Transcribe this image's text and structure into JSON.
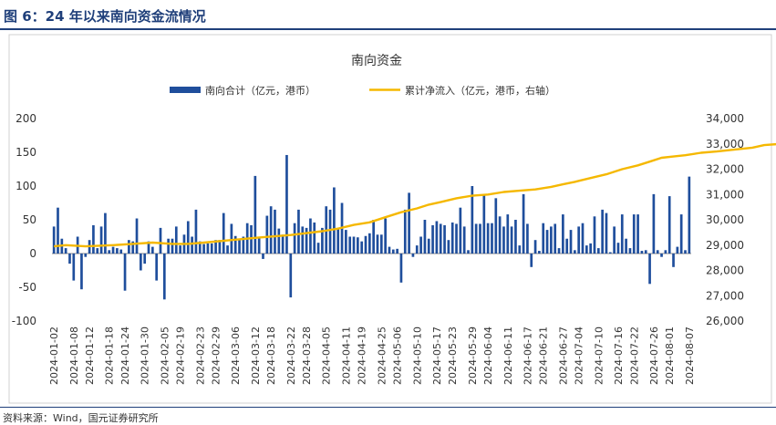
{
  "figure_title": "图 6：24 年以来南向资金流情况",
  "source_note": "资料来源：Wind，国元证券研究所",
  "chart_data": {
    "type": "bar+line",
    "title": "南向资金",
    "legend_position": "top",
    "grid": false,
    "left_axis": {
      "ylim": [
        -100,
        200
      ],
      "ticks": [
        "200",
        "150",
        "100",
        "50",
        "0",
        "-50",
        "-100"
      ]
    },
    "right_axis": {
      "ylim": [
        26000,
        34000
      ],
      "ticks": [
        "34,000",
        "33,000",
        "32,000",
        "31,000",
        "30,000",
        "29,000",
        "28,000",
        "27,000",
        "26,000"
      ]
    },
    "x_tick_labels": [
      "2024-01-02",
      "2024-01-08",
      "2024-01-12",
      "2024-01-18",
      "2024-01-24",
      "2024-01-30",
      "2024-02-05",
      "2024-02-19",
      "2024-02-23",
      "2024-02-29",
      "2024-03-06",
      "2024-03-12",
      "2024-03-18",
      "2024-03-22",
      "2024-03-28",
      "2024-04-05",
      "2024-04-11",
      "2024-04-19",
      "2024-04-25",
      "2024-05-06",
      "2024-05-10",
      "2024-05-17",
      "2024-05-23",
      "2024-05-29",
      "2024-06-04",
      "2024-06-11",
      "2024-06-17",
      "2024-06-21",
      "2024-06-27",
      "2024-07-04",
      "2024-07-10",
      "2024-07-16",
      "2024-07-22",
      "2024-07-26",
      "2024-08-01",
      "2024-08-07"
    ],
    "series": [
      {
        "name": "南向合计（亿元，港币）",
        "type": "bar",
        "axis": "left",
        "color": "#1f4e9c",
        "values": [
          40,
          68,
          22,
          8,
          -15,
          -40,
          25,
          -53,
          -5,
          20,
          42,
          8,
          40,
          60,
          5,
          10,
          8,
          6,
          -55,
          20,
          18,
          52,
          -25,
          -15,
          18,
          10,
          -40,
          38,
          -68,
          22,
          22,
          40,
          12,
          28,
          48,
          25,
          65,
          18,
          14,
          15,
          15,
          20,
          20,
          60,
          12,
          44,
          26,
          20,
          25,
          45,
          42,
          115,
          25,
          -8,
          56,
          70,
          65,
          37,
          28,
          146,
          -65,
          45,
          65,
          40,
          38,
          52,
          46,
          16,
          38,
          70,
          65,
          98,
          38,
          75,
          35,
          25,
          25,
          24,
          18,
          26,
          30,
          50,
          28,
          28,
          52,
          10,
          6,
          7,
          -43,
          65,
          90,
          -5,
          12,
          25,
          50,
          22,
          42,
          48,
          44,
          42,
          20,
          46,
          44,
          68,
          40,
          5,
          100,
          44,
          44,
          88,
          45,
          45,
          82,
          55,
          40,
          58,
          40,
          50,
          12,
          88,
          44,
          -20,
          20,
          4,
          45,
          35,
          40,
          44,
          8,
          58,
          22,
          35,
          5,
          40,
          45,
          12,
          15,
          55,
          8,
          65,
          60,
          2,
          40,
          16,
          58,
          22,
          8,
          58,
          58,
          4,
          5,
          -45,
          88,
          5,
          -5,
          5,
          85,
          -20,
          10,
          58,
          5,
          114
        ]
      },
      {
        "name": "累计净流入（亿元，港币，右轴）",
        "type": "line",
        "axis": "right",
        "color": "#f5b800",
        "anchors": [
          [
            0,
            28950
          ],
          [
            3,
            29000
          ],
          [
            8,
            28950
          ],
          [
            15,
            29000
          ],
          [
            20,
            29050
          ],
          [
            25,
            29100
          ],
          [
            30,
            29050
          ],
          [
            34,
            29050
          ],
          [
            38,
            29100
          ],
          [
            45,
            29200
          ],
          [
            52,
            29300
          ],
          [
            60,
            29400
          ],
          [
            68,
            29550
          ],
          [
            72,
            29650
          ],
          [
            76,
            29800
          ],
          [
            80,
            29900
          ],
          [
            84,
            30100
          ],
          [
            88,
            30300
          ],
          [
            92,
            30450
          ],
          [
            95,
            30600
          ],
          [
            98,
            30700
          ],
          [
            102,
            30850
          ],
          [
            106,
            30950
          ],
          [
            110,
            31000
          ],
          [
            114,
            31100
          ],
          [
            118,
            31150
          ],
          [
            122,
            31200
          ],
          [
            126,
            31300
          ],
          [
            129,
            31400
          ],
          [
            132,
            31500
          ],
          [
            136,
            31650
          ],
          [
            140,
            31800
          ],
          [
            144,
            32000
          ],
          [
            148,
            32150
          ],
          [
            151,
            32300
          ],
          [
            154,
            32450
          ],
          [
            157,
            32500
          ],
          [
            160,
            32550
          ],
          [
            164,
            32650
          ],
          [
            168,
            32700
          ],
          [
            171,
            32750
          ],
          [
            174,
            32800
          ],
          [
            177,
            32850
          ],
          [
            180,
            32950
          ],
          [
            184,
            33000
          ],
          [
            187,
            32950
          ],
          [
            190,
            33000
          ],
          [
            194,
            33050
          ],
          [
            198,
            33100
          ],
          [
            201,
            33150
          ],
          [
            203,
            33150
          ],
          [
            205,
            33200
          ],
          [
            207,
            33200
          ],
          [
            209,
            33300
          ]
        ]
      }
    ]
  }
}
